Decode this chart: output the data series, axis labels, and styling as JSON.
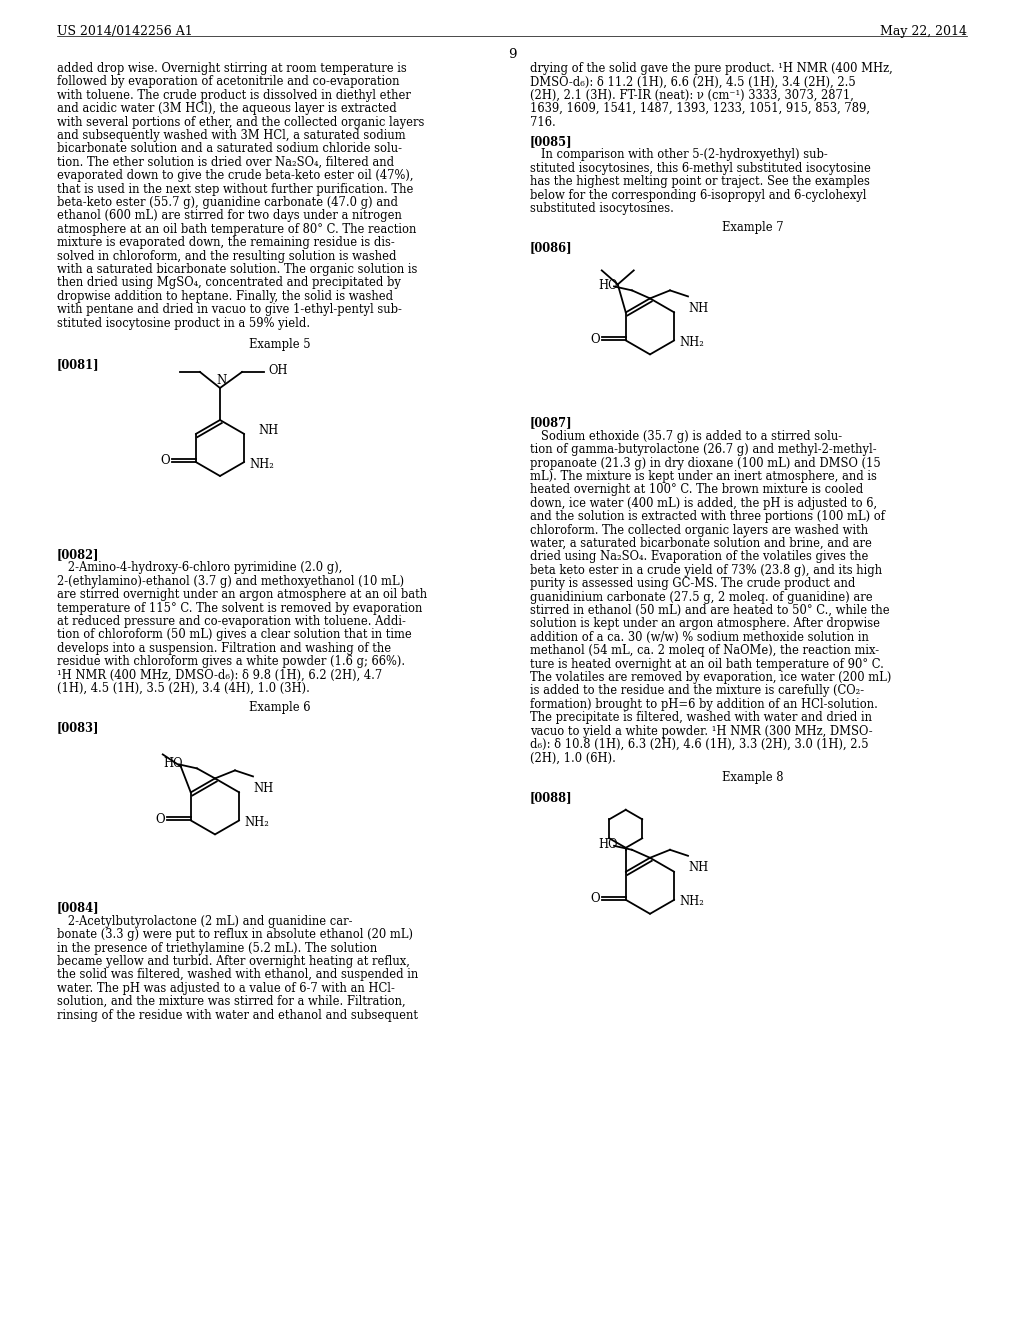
{
  "page_header_left": "US 2014/0142256 A1",
  "page_header_right": "May 22, 2014",
  "page_number": "9",
  "background_color": "#ffffff",
  "text_color": "#000000",
  "left_column_text": [
    "added drop wise. Overnight stirring at room temperature is",
    "followed by evaporation of acetonitrile and co-evaporation",
    "with toluene. The crude product is dissolved in diethyl ether",
    "and acidic water (3M HCl), the aqueous layer is extracted",
    "with several portions of ether, and the collected organic layers",
    "and subsequently washed with 3M HCl, a saturated sodium",
    "bicarbonate solution and a saturated sodium chloride solu-",
    "tion. The ether solution is dried over Na₂SO₄, filtered and",
    "evaporated down to give the crude beta-keto ester oil (47%),",
    "that is used in the next step without further purification. The",
    "beta-keto ester (55.7 g), guanidine carbonate (47.0 g) and",
    "ethanol (600 mL) are stirred for two days under a nitrogen",
    "atmosphere at an oil bath temperature of 80° C. The reaction",
    "mixture is evaporated down, the remaining residue is dis-",
    "solved in chloroform, and the resulting solution is washed",
    "with a saturated bicarbonate solution. The organic solution is",
    "then dried using MgSO₄, concentrated and precipitated by",
    "dropwise addition to heptane. Finally, the solid is washed",
    "with pentane and dried in vacuo to give 1-ethyl-pentyl sub-",
    "stituted isocytosine product in a 59% yield."
  ],
  "example5_label": "Example 5",
  "ref0081": "[0081]",
  "ref0082_label": "[0082]",
  "ref0082_text": [
    "   2-Amino-4-hydroxy-6-chloro pyrimidine (2.0 g),",
    "2-(ethylamino)-ethanol (3.7 g) and methoxyethanol (10 mL)",
    "are stirred overnight under an argon atmosphere at an oil bath",
    "temperature of 115° C. The solvent is removed by evaporation",
    "at reduced pressure and co-evaporation with toluene. Addi-",
    "tion of chloroform (50 mL) gives a clear solution that in time",
    "develops into a suspension. Filtration and washing of the",
    "residue with chloroform gives a white powder (1.6 g; 66%).",
    "¹H NMR (400 MHz, DMSO-d₆): δ 9.8 (1H), 6.2 (2H), 4.7",
    "(1H), 4.5 (1H), 3.5 (2H), 3.4 (4H), 1.0 (3H)."
  ],
  "example6_label": "Example 6",
  "ref0083": "[0083]",
  "ref0084_label": "[0084]",
  "ref0084_text": [
    "   2-Acetylbutyrolactone (2 mL) and guanidine car-",
    "bonate (3.3 g) were put to reflux in absolute ethanol (20 mL)",
    "in the presence of triethylamine (5.2 mL). The solution",
    "became yellow and turbid. After overnight heating at reflux,",
    "the solid was filtered, washed with ethanol, and suspended in",
    "water. The pH was adjusted to a value of 6-7 with an HCl-",
    "solution, and the mixture was stirred for a while. Filtration,",
    "rinsing of the residue with water and ethanol and subsequent"
  ],
  "right_col_top_text": [
    "drying of the solid gave the pure product. ¹H NMR (400 MHz,",
    "DMSO-d₆): δ 11.2 (1H), 6.6 (2H), 4.5 (1H), 3.4 (2H), 2.5",
    "(2H), 2.1 (3H). FT-IR (neat): ν (cm⁻¹) 3333, 3073, 2871,",
    "1639, 1609, 1541, 1487, 1393, 1233, 1051, 915, 853, 789,",
    "716."
  ],
  "ref0085_label": "[0085]",
  "ref0085_text": [
    "   In comparison with other 5-(2-hydroxyethyl) sub-",
    "stituted isocytosines, this 6-methyl substituted isocytosine",
    "has the highest melting point or traject. See the examples",
    "below for the corresponding 6-isopropyl and 6-cyclohexyl",
    "substituted isocytosines."
  ],
  "example7_label": "Example 7",
  "ref0086": "[0086]",
  "ref0087_label": "[0087]",
  "ref0087_text": [
    "   Sodium ethoxide (35.7 g) is added to a stirred solu-",
    "tion of gamma-butyrolactone (26.7 g) and methyl-2-methyl-",
    "propanoate (21.3 g) in dry dioxane (100 mL) and DMSO (15",
    "mL). The mixture is kept under an inert atmosphere, and is",
    "heated overnight at 100° C. The brown mixture is cooled",
    "down, ice water (400 mL) is added, the pH is adjusted to 6,",
    "and the solution is extracted with three portions (100 mL) of",
    "chloroform. The collected organic layers are washed with",
    "water, a saturated bicarbonate solution and brine, and are",
    "dried using Na₂SO₄. Evaporation of the volatiles gives the",
    "beta keto ester in a crude yield of 73% (23.8 g), and its high",
    "purity is assessed using GC-MS. The crude product and",
    "guanidinium carbonate (27.5 g, 2 moleq. of guanidine) are",
    "stirred in ethanol (50 mL) and are heated to 50° C., while the",
    "solution is kept under an argon atmosphere. After dropwise",
    "addition of a ca. 30 (w/w) % sodium methoxide solution in",
    "methanol (54 mL, ca. 2 moleq of NaOMe), the reaction mix-",
    "ture is heated overnight at an oil bath temperature of 90° C.",
    "The volatiles are removed by evaporation, ice water (200 mL)",
    "is added to the residue and the mixture is carefully (CO₂-",
    "formation) brought to pH=6 by addition of an HCl-solution.",
    "The precipitate is filtered, washed with water and dried in",
    "vacuo to yield a white powder. ¹H NMR (300 MHz, DMSO-",
    "d₆): δ 10.8 (1H), 6.3 (2H), 4.6 (1H), 3.3 (2H), 3.0 (1H), 2.5",
    "(2H), 1.0 (6H)."
  ],
  "example8_label": "Example 8",
  "ref0088": "[0088]"
}
